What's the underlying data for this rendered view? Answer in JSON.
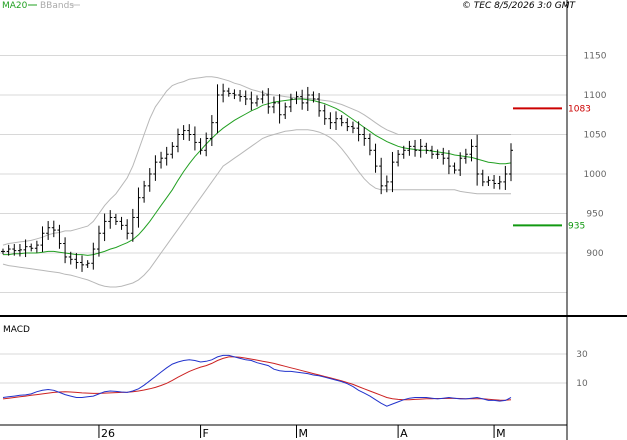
{
  "header": {
    "legend_ma": "MA20",
    "legend_bb": "BBands",
    "timestamp": "© TEC 8/5/2026 3:0 GMT"
  },
  "colors": {
    "ma": "#22a022",
    "bbands": "#b8b8b8",
    "macd": "#2233cc",
    "signal": "#cc2222",
    "resistance": "#cc0000",
    "support": "#119911",
    "grid": "#d8d8d8",
    "frame": "#000000"
  },
  "chart_data": [
    {
      "type": "ohlc",
      "title": "",
      "y_ticks": [
        1150,
        1100,
        1050,
        1000,
        950,
        900
      ],
      "ylim": [
        850,
        1190
      ],
      "x_ticks": [
        "26",
        "F",
        "M",
        "A",
        "M"
      ],
      "levels": [
        {
          "name": "resistance",
          "value": 1083,
          "label": "1083"
        },
        {
          "name": "support",
          "value": 935,
          "label": "935"
        }
      ],
      "close": [
        902,
        905,
        903,
        904,
        908,
        906,
        910,
        925,
        932,
        929,
        912,
        895,
        892,
        888,
        885,
        887,
        905,
        925,
        940,
        945,
        940,
        935,
        925,
        945,
        970,
        985,
        1000,
        1015,
        1020,
        1025,
        1035,
        1050,
        1055,
        1050,
        1040,
        1030,
        1045,
        1065,
        1100,
        1105,
        1102,
        1100,
        1098,
        1095,
        1090,
        1095,
        1100,
        1085,
        1090,
        1075,
        1085,
        1095,
        1098,
        1090,
        1100,
        1095,
        1080,
        1070,
        1065,
        1070,
        1065,
        1060,
        1058,
        1050,
        1045,
        1030,
        1010,
        985,
        990,
        1015,
        1025,
        1030,
        1035,
        1030,
        1035,
        1030,
        1025,
        1025,
        1020,
        1010,
        1005,
        1020,
        1025,
        1035,
        1000,
        990,
        992,
        988,
        990,
        1000,
        1030
      ],
      "ma20": [
        898,
        898,
        899,
        899,
        900,
        900,
        900,
        901,
        902,
        902,
        901,
        900,
        899,
        898,
        898,
        897,
        898,
        900,
        902,
        905,
        907,
        910,
        913,
        917,
        923,
        931,
        940,
        950,
        960,
        970,
        980,
        992,
        1003,
        1013,
        1022,
        1030,
        1038,
        1045,
        1052,
        1058,
        1063,
        1068,
        1072,
        1076,
        1080,
        1083,
        1087,
        1089,
        1091,
        1092,
        1093,
        1094,
        1095,
        1095,
        1094,
        1093,
        1091,
        1089,
        1086,
        1083,
        1079,
        1074,
        1069,
        1064,
        1059,
        1054,
        1049,
        1045,
        1041,
        1038,
        1035,
        1033,
        1032,
        1031,
        1030,
        1030,
        1029,
        1028,
        1027,
        1026,
        1024,
        1023,
        1022,
        1021,
        1019,
        1017,
        1015,
        1014,
        1013,
        1013,
        1014
      ],
      "bb_upper": [
        910,
        912,
        913,
        914,
        915,
        916,
        918,
        920,
        923,
        925,
        926,
        928,
        928,
        930,
        932,
        934,
        940,
        950,
        960,
        968,
        975,
        985,
        995,
        1010,
        1030,
        1050,
        1070,
        1085,
        1095,
        1105,
        1112,
        1115,
        1117,
        1120,
        1121,
        1122,
        1123,
        1123,
        1122,
        1120,
        1118,
        1115,
        1113,
        1110,
        1107,
        1105,
        1103,
        1101,
        1100,
        1099,
        1098,
        1097,
        1097,
        1096,
        1096,
        1095,
        1094,
        1093,
        1092,
        1090,
        1088,
        1085,
        1082,
        1079,
        1075,
        1070,
        1065,
        1060,
        1056,
        1053,
        1050,
        1050,
        1050,
        1050,
        1050,
        1050,
        1050,
        1050,
        1050,
        1050,
        1050,
        1050,
        1050,
        1050,
        1050,
        1050,
        1050,
        1050,
        1050,
        1050,
        1050
      ],
      "bb_lower": [
        886,
        884,
        883,
        882,
        881,
        880,
        879,
        878,
        877,
        876,
        875,
        873,
        872,
        870,
        868,
        866,
        863,
        860,
        858,
        857,
        857,
        858,
        860,
        862,
        866,
        872,
        880,
        890,
        900,
        910,
        920,
        930,
        940,
        950,
        960,
        970,
        980,
        990,
        1000,
        1010,
        1015,
        1020,
        1025,
        1030,
        1035,
        1040,
        1045,
        1048,
        1050,
        1052,
        1054,
        1055,
        1056,
        1056,
        1056,
        1055,
        1053,
        1050,
        1046,
        1040,
        1032,
        1023,
        1013,
        1003,
        994,
        987,
        982,
        980,
        980,
        980,
        980,
        980,
        980,
        980,
        980,
        980,
        980,
        980,
        980,
        980,
        980,
        978,
        977,
        976,
        975,
        975,
        975,
        975,
        975,
        975,
        975
      ]
    },
    {
      "type": "line",
      "title": "MACD",
      "y_ticks": [
        30,
        10
      ],
      "ylim": [
        -15,
        40
      ],
      "series": [
        {
          "name": "macd",
          "values": [
            0,
            0.5,
            1,
            1.5,
            1.8,
            2.5,
            4,
            5,
            5.5,
            5,
            3.5,
            2,
            1,
            0,
            0,
            0.5,
            1,
            2.5,
            4,
            4.5,
            4.2,
            3.8,
            3.5,
            4.5,
            6,
            8.5,
            11.5,
            14.5,
            17.5,
            20.5,
            23,
            24.5,
            25.5,
            26,
            25.5,
            24.5,
            25,
            26,
            28,
            29,
            29,
            28,
            27,
            26,
            25.5,
            24,
            23,
            22,
            19.5,
            18.5,
            18,
            18,
            17.5,
            17,
            16.5,
            15.5,
            15,
            14,
            13,
            12,
            11,
            9.5,
            7.5,
            5,
            3,
            1,
            -1.5,
            -4,
            -6,
            -4.5,
            -3,
            -1.5,
            -0.5,
            0,
            0,
            0,
            -0.5,
            -1,
            -0.5,
            0,
            -0.5,
            -1,
            -1,
            -0.5,
            0,
            -1,
            -2,
            -2,
            -2.5,
            -2,
            0
          ]
        },
        {
          "name": "signal",
          "values": [
            -1,
            -0.5,
            0,
            0.5,
            1,
            1.5,
            2,
            2.5,
            3,
            3.5,
            3.8,
            3.9,
            3.8,
            3.5,
            3.2,
            3,
            2.8,
            2.8,
            3,
            3.2,
            3.4,
            3.5,
            3.6,
            4,
            4.5,
            5.2,
            6,
            7,
            8.3,
            9.8,
            11.8,
            14,
            16,
            18,
            19.5,
            21,
            22,
            23.5,
            25.5,
            27,
            28,
            28,
            27.8,
            27.2,
            26.5,
            25.8,
            25,
            24.3,
            23.5,
            22.5,
            21.5,
            20.5,
            19.5,
            18.5,
            17.5,
            16.5,
            15.5,
            14.5,
            13.5,
            12.5,
            11.5,
            10.3,
            9,
            7.5,
            6,
            4.5,
            3,
            1.5,
            0,
            -0.8,
            -1.3,
            -1.5,
            -1.5,
            -1.3,
            -1.1,
            -0.9,
            -0.8,
            -0.7,
            -0.7,
            -0.6,
            -0.6,
            -0.7,
            -0.8,
            -0.8,
            -0.8,
            -0.9,
            -1.2,
            -1.5,
            -1.8,
            -1.9,
            -1.5
          ]
        }
      ]
    }
  ]
}
